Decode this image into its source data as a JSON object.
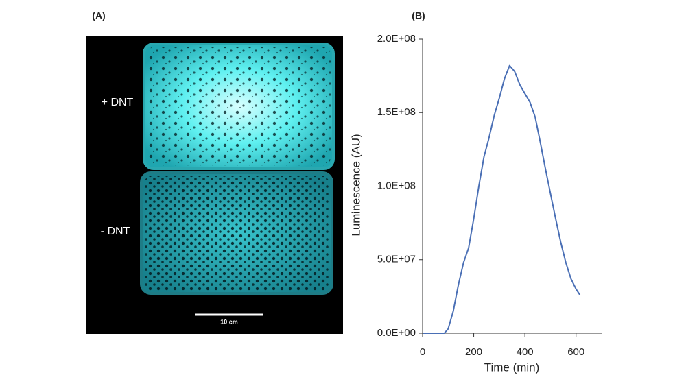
{
  "panels": {
    "a_label": "(A)",
    "b_label": "(B)"
  },
  "image": {
    "top_label": "+ DNT",
    "bottom_label": "- DNT",
    "scale_bar": "10 cm"
  },
  "chart_data": {
    "type": "line",
    "x_label": "Time (min)",
    "y_label": "Luminescence (AU)",
    "x": [
      0,
      85,
      100,
      120,
      140,
      160,
      180,
      200,
      220,
      240,
      260,
      280,
      300,
      320,
      340,
      360,
      380,
      400,
      420,
      440,
      460,
      480,
      500,
      520,
      540,
      560,
      580,
      600,
      615
    ],
    "values": [
      0,
      0,
      3000000,
      15000000,
      33000000,
      48000000,
      58000000,
      78000000,
      100000000,
      120000000,
      133000000,
      148000000,
      160000000,
      173000000,
      182000000,
      178000000,
      169000000,
      163000000,
      157000000,
      147000000,
      130000000,
      112000000,
      95000000,
      78000000,
      62000000,
      48000000,
      37000000,
      30000000,
      26000000
    ],
    "color": "#4a6fb5",
    "xlim": [
      0,
      700
    ],
    "xticks": [
      0,
      200,
      400,
      600
    ],
    "ylim": [
      0,
      200000000
    ],
    "yticks": [
      {
        "value": 0,
        "label": "0.0E+00"
      },
      {
        "value": 50000000,
        "label": "5.0E+07"
      },
      {
        "value": 100000000,
        "label": "1.0E+08"
      },
      {
        "value": 150000000,
        "label": "1.5E+08"
      },
      {
        "value": 200000000,
        "label": "2.0E+08"
      }
    ],
    "grid": false
  }
}
